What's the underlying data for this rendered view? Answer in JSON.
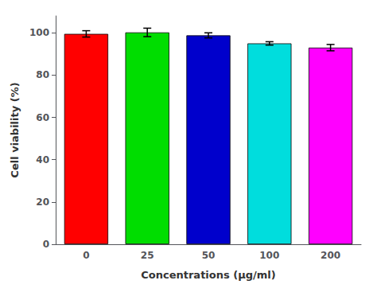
{
  "chart_data": {
    "type": "bar",
    "categories": [
      "0",
      "25",
      "50",
      "100",
      "200"
    ],
    "values": [
      99.5,
      100.2,
      98.8,
      95.0,
      93.0
    ],
    "errors": [
      1.5,
      2.0,
      1.2,
      0.8,
      1.5
    ],
    "colors": [
      "#ff0000",
      "#00dd00",
      "#0000cc",
      "#00dddd",
      "#ff00ff"
    ],
    "xlabel": "Concentrations (μg/ml)",
    "ylabel": "Cell viability (%)",
    "ylim": [
      0,
      108
    ],
    "yticks": [
      0,
      20,
      40,
      60,
      80,
      100
    ],
    "grid": false
  }
}
